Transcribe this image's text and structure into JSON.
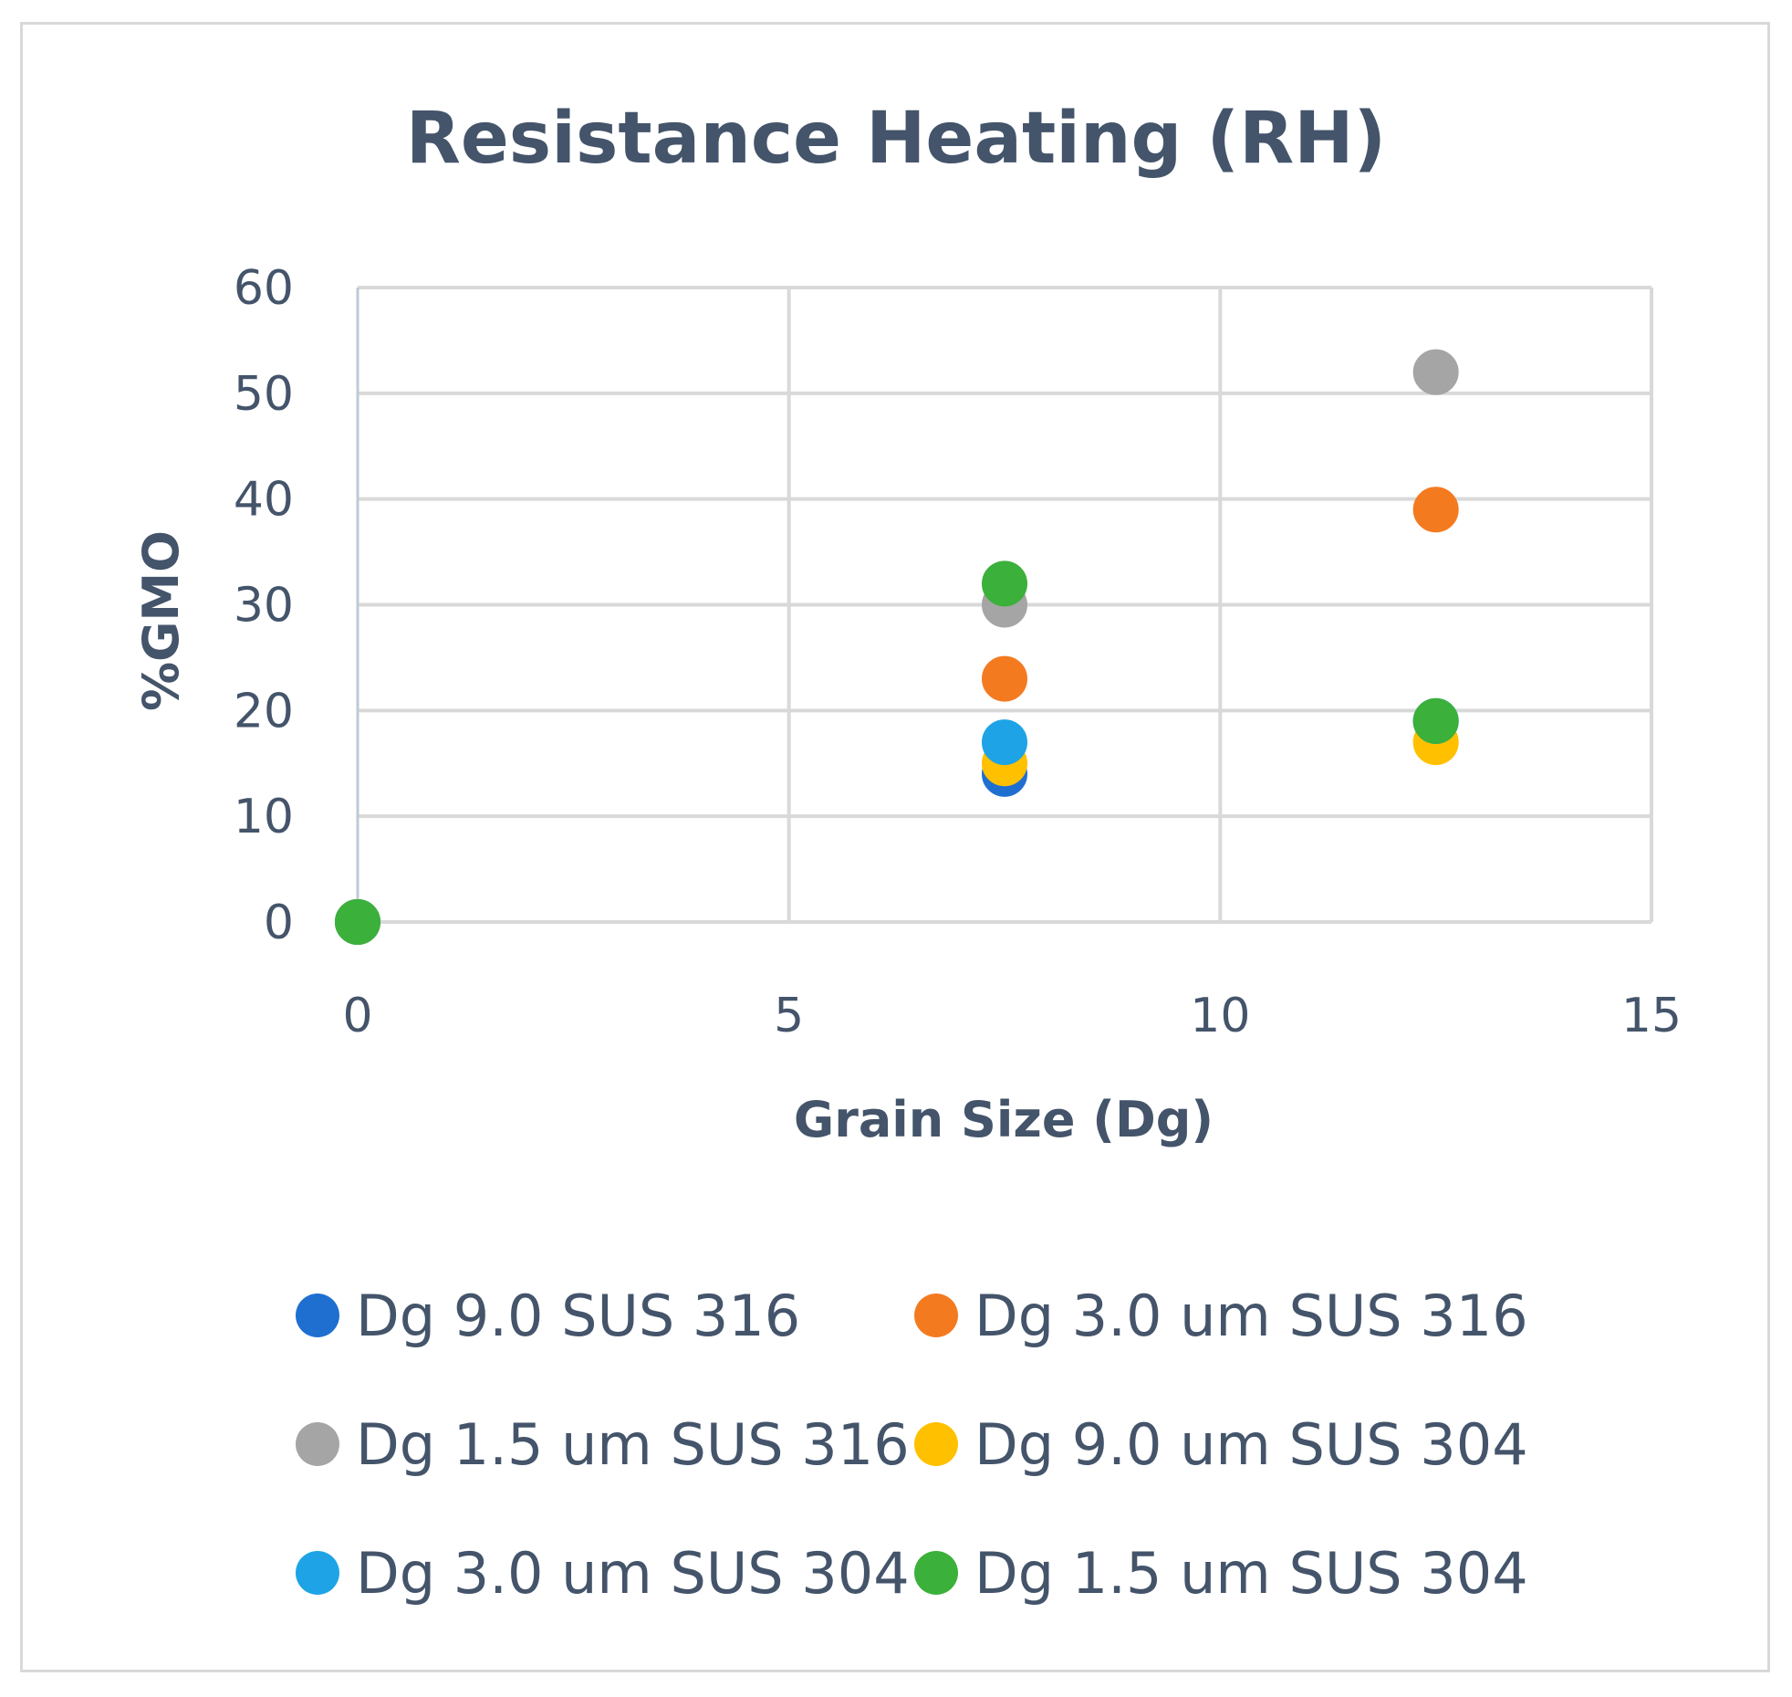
{
  "chart_data": {
    "type": "scatter",
    "title": "Resistance Heating (RH)",
    "xlabel": "Grain Size (Dg)",
    "ylabel": "%GMO",
    "xlim": [
      0,
      15
    ],
    "ylim": [
      0,
      60
    ],
    "xticks": [
      "0",
      "5",
      "10",
      "15"
    ],
    "yticks": [
      "0",
      "10",
      "20",
      "30",
      "40",
      "50",
      "60"
    ],
    "grid": true,
    "legend_position": "bottom",
    "series": [
      {
        "name": "Dg 9.0 SUS 316",
        "color": "#1f6fd1",
        "points": [
          [
            0,
            0
          ],
          [
            7.5,
            14
          ],
          [
            12.5,
            19
          ]
        ]
      },
      {
        "name": "Dg 3.0 um SUS 316",
        "color": "#f47a20",
        "points": [
          [
            0,
            0
          ],
          [
            7.5,
            23
          ],
          [
            12.5,
            39
          ]
        ]
      },
      {
        "name": "Dg 1.5 um SUS 316",
        "color": "#a5a5a5",
        "points": [
          [
            0,
            0
          ],
          [
            7.5,
            30
          ],
          [
            12.5,
            52
          ]
        ]
      },
      {
        "name": "Dg 9.0 um SUS 304",
        "color": "#ffc000",
        "points": [
          [
            0,
            0
          ],
          [
            7.5,
            15
          ],
          [
            12.5,
            17
          ]
        ]
      },
      {
        "name": "Dg 3.0 um SUS 304",
        "color": "#1ea4e6",
        "points": [
          [
            0,
            0
          ],
          [
            7.5,
            17
          ],
          [
            12.5,
            19
          ]
        ]
      },
      {
        "name": "Dg 1.5 um SUS 304",
        "color": "#3bb03b",
        "points": [
          [
            0,
            0
          ],
          [
            7.5,
            32
          ],
          [
            12.5,
            19
          ]
        ]
      }
    ]
  }
}
